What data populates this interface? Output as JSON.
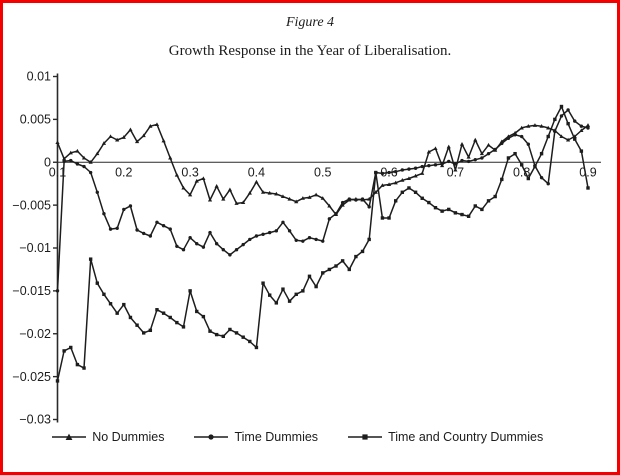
{
  "figure": {
    "label": "Figure 4",
    "caption": "Growth Response in the Year of Liberalisation."
  },
  "colors": {
    "line": "#1d1d1d",
    "text": "#1c1c1c",
    "axis": "#2a2a2a",
    "border": "#f40000",
    "background": "#ffffff"
  },
  "chart_data": {
    "type": "line",
    "title": "Growth Response in the Year of Liberalisation.",
    "xlabel": "",
    "ylabel": "",
    "xlim": [
      0.1,
      0.9
    ],
    "ylim": [
      -0.03,
      0.01
    ],
    "grid": false,
    "x_axis_position": "at y = 0",
    "legend_position": "bottom",
    "xticks": [
      "0.1",
      "0.2",
      "0.3",
      "0.4",
      "0.5",
      "0.6",
      "0.7",
      "0.8",
      "0.9"
    ],
    "yticks": [
      "0.01",
      "0.005",
      "0",
      "−0.005",
      "−0.01",
      "−0.015",
      "−0.02",
      "−0.025",
      "−0.03"
    ],
    "x": [
      0.1,
      0.11,
      0.12,
      0.13,
      0.14,
      0.15,
      0.16,
      0.17,
      0.18,
      0.19,
      0.2,
      0.21,
      0.22,
      0.23,
      0.24,
      0.25,
      0.26,
      0.27,
      0.28,
      0.29,
      0.3,
      0.31,
      0.32,
      0.33,
      0.34,
      0.35,
      0.36,
      0.37,
      0.38,
      0.39,
      0.4,
      0.41,
      0.42,
      0.43,
      0.44,
      0.45,
      0.46,
      0.47,
      0.48,
      0.49,
      0.5,
      0.51,
      0.52,
      0.53,
      0.54,
      0.55,
      0.56,
      0.57,
      0.58,
      0.59,
      0.6,
      0.61,
      0.62,
      0.63,
      0.64,
      0.65,
      0.66,
      0.67,
      0.68,
      0.69,
      0.7,
      0.71,
      0.72,
      0.73,
      0.74,
      0.75,
      0.76,
      0.77,
      0.78,
      0.79,
      0.8,
      0.81,
      0.82,
      0.83,
      0.84,
      0.85,
      0.86,
      0.87,
      0.88,
      0.89,
      0.9
    ],
    "series": [
      {
        "name": "No Dummies",
        "marker": "triangle",
        "values": [
          0.0023,
          0.0004,
          0.0011,
          0.0013,
          0.0005,
          0.0,
          0.001,
          0.0022,
          0.003,
          0.0026,
          0.0029,
          0.0038,
          0.0024,
          0.0031,
          0.0042,
          0.0044,
          0.0025,
          0.0005,
          -0.0015,
          -0.003,
          -0.0038,
          -0.0022,
          -0.0019,
          -0.0044,
          -0.0028,
          -0.0043,
          -0.0032,
          -0.0048,
          -0.0047,
          -0.0036,
          -0.0023,
          -0.0035,
          -0.0036,
          -0.0037,
          -0.004,
          -0.0043,
          -0.0046,
          -0.0042,
          -0.0041,
          -0.0038,
          -0.0042,
          -0.0051,
          -0.0061,
          -0.005,
          -0.0044,
          -0.0043,
          -0.0044,
          -0.0043,
          -0.0035,
          -0.0027,
          -0.0026,
          -0.0024,
          -0.0021,
          -0.0019,
          -0.0016,
          -0.0013,
          0.0012,
          0.0016,
          -0.0004,
          0.0018,
          -0.0009,
          0.0021,
          0.0006,
          0.0026,
          0.001,
          0.002,
          0.0014,
          0.0024,
          0.003,
          0.0034,
          0.004,
          0.0042,
          0.0043,
          0.0042,
          0.004,
          0.0037,
          0.003,
          0.0026,
          0.003,
          0.0037,
          0.0043
        ]
      },
      {
        "name": "Time Dummies",
        "marker": "circle",
        "values": [
          -0.015,
          0.0001,
          0.0002,
          -0.0002,
          -0.0005,
          -0.0012,
          -0.0035,
          -0.006,
          -0.0078,
          -0.0077,
          -0.0055,
          -0.0051,
          -0.0079,
          -0.0083,
          -0.0086,
          -0.007,
          -0.0074,
          -0.0078,
          -0.0098,
          -0.0102,
          -0.0088,
          -0.0095,
          -0.0099,
          -0.0082,
          -0.0095,
          -0.0102,
          -0.0108,
          -0.0102,
          -0.0096,
          -0.009,
          -0.0086,
          -0.0084,
          -0.0082,
          -0.008,
          -0.007,
          -0.008,
          -0.0091,
          -0.0092,
          -0.0088,
          -0.009,
          -0.0092,
          -0.0066,
          -0.006,
          -0.0047,
          -0.0043,
          -0.0044,
          -0.0043,
          -0.0052,
          -0.0012,
          -0.0013,
          -0.0012,
          -0.0011,
          -0.0009,
          -0.0008,
          -0.0007,
          -0.0005,
          -0.0004,
          -0.0003,
          -0.0002,
          0.0001,
          -0.0002,
          0.0002,
          0.0001,
          0.0003,
          0.0005,
          0.001,
          0.0015,
          0.0022,
          0.0028,
          0.0032,
          0.003,
          0.0021,
          -0.0004,
          -0.0018,
          -0.0025,
          0.0036,
          0.0054,
          0.0061,
          0.0048,
          0.0042,
          0.004
        ]
      },
      {
        "name": "Time and Country Dummies",
        "marker": "square",
        "values": [
          -0.0255,
          -0.022,
          -0.0216,
          -0.0236,
          -0.024,
          -0.0113,
          -0.0141,
          -0.0154,
          -0.0165,
          -0.0176,
          -0.0166,
          -0.0181,
          -0.019,
          -0.0199,
          -0.0196,
          -0.0172,
          -0.0176,
          -0.0181,
          -0.0187,
          -0.0192,
          -0.015,
          -0.0174,
          -0.018,
          -0.0197,
          -0.0201,
          -0.0203,
          -0.0195,
          -0.0199,
          -0.0204,
          -0.0209,
          -0.0216,
          -0.0141,
          -0.0155,
          -0.0164,
          -0.0148,
          -0.0162,
          -0.0154,
          -0.015,
          -0.0133,
          -0.0145,
          -0.0129,
          -0.0125,
          -0.0121,
          -0.0115,
          -0.0125,
          -0.011,
          -0.0104,
          -0.009,
          -0.0012,
          -0.0065,
          -0.0065,
          -0.0045,
          -0.0035,
          -0.003,
          -0.0035,
          -0.0042,
          -0.0047,
          -0.0053,
          -0.0057,
          -0.0055,
          -0.0059,
          -0.0061,
          -0.0063,
          -0.0051,
          -0.0055,
          -0.0045,
          -0.004,
          -0.002,
          0.0005,
          0.001,
          -0.0003,
          -0.0019,
          -0.0005,
          0.001,
          0.003,
          0.005,
          0.0065,
          0.0045,
          0.0027,
          0.0013,
          -0.003
        ]
      }
    ]
  }
}
